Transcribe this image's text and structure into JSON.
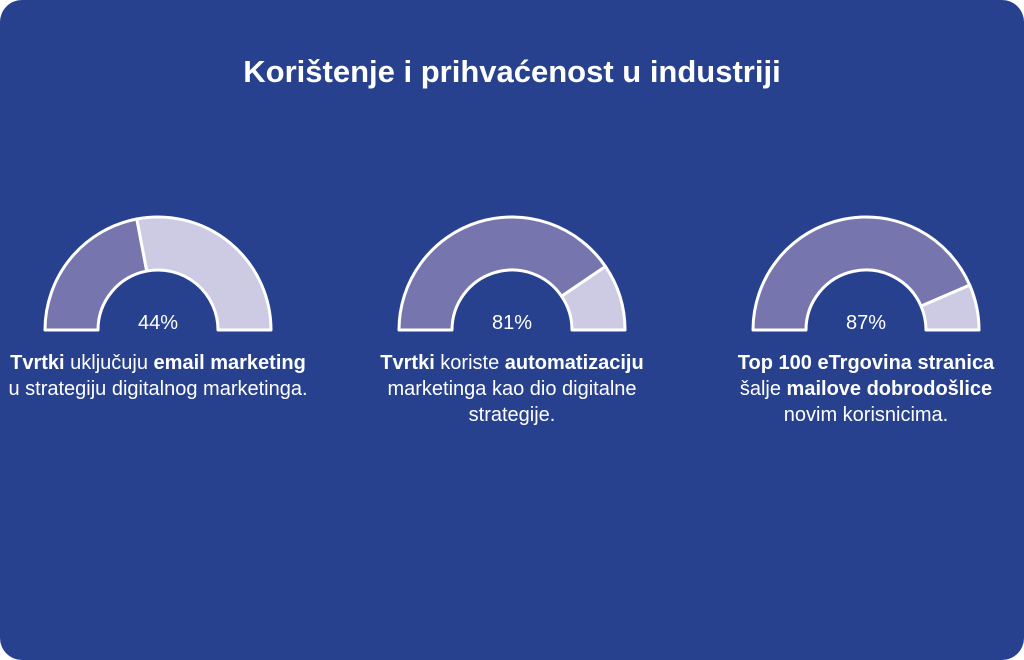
{
  "title": "Korištenje i prihvaćenost u industriji",
  "colors": {
    "background": "#27418e",
    "filled": "#7775ad",
    "remaining": "#cccbe3",
    "stroke": "#ffffff",
    "text": "#ffffff"
  },
  "gauges": [
    {
      "percent_label": "44%",
      "caption": [
        {
          "text": "Tvrtki",
          "bold": true
        },
        {
          "text": " uključuju ",
          "bold": false
        },
        {
          "text": "email marketing",
          "bold": true
        },
        {
          "text": " u strategiju digitalnog marketinga.",
          "bold": false
        }
      ]
    },
    {
      "percent_label": "81%",
      "caption": [
        {
          "text": "Tvrtki",
          "bold": true
        },
        {
          "text": " koriste ",
          "bold": false
        },
        {
          "text": "automatizaciju",
          "bold": true
        },
        {
          "text": " marketinga kao dio digitalne strategije.",
          "bold": false
        }
      ]
    },
    {
      "percent_label": "87%",
      "caption": [
        {
          "text": "Top 100 eTrgovina stranica",
          "bold": true
        },
        {
          "text": " šalje ",
          "bold": false
        },
        {
          "text": "mailove dobrodošlice",
          "bold": true
        },
        {
          "text": " novim korisnicima.",
          "bold": false
        }
      ]
    }
  ],
  "chart_data": {
    "type": "gauge",
    "title": "Korištenje i prihvaćenost u industriji",
    "unit": "%",
    "range": [
      0,
      100
    ],
    "values": [
      44,
      81,
      87
    ]
  }
}
